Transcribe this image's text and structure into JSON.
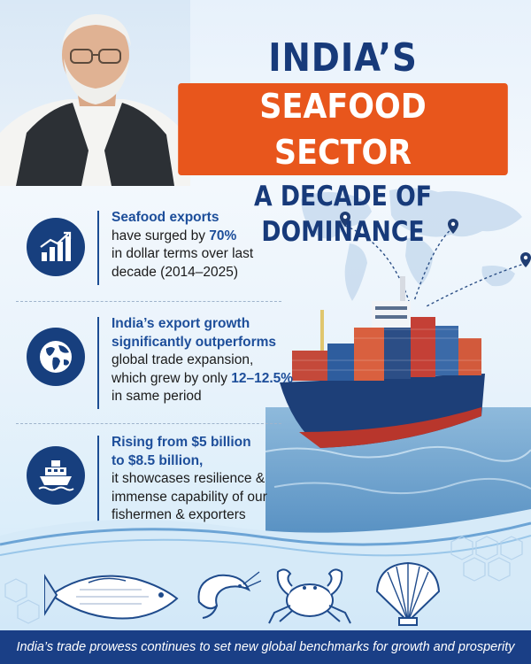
{
  "header": {
    "title_line1": "INDIA’S",
    "title_line2": "SEAFOOD SECTOR",
    "title_line3": "A DECADE OF DOMINANCE"
  },
  "colors": {
    "navy": "#173a7a",
    "orange": "#e8561c",
    "footer": "#1a3f86",
    "accent_text": "#1d4e9a"
  },
  "points": [
    {
      "icon": "growth-chart-icon",
      "highlight_1": "Seafood exports",
      "text_1": "have surged by ",
      "highlight_2": "70%",
      "text_2": "in dollar terms over last",
      "text_3": "decade (2014–2025)"
    },
    {
      "icon": "globe-icon",
      "highlight_1": "India’s export growth",
      "highlight_2": "significantly outperforms",
      "text_1": "global trade expansion,",
      "text_2": "which grew by only ",
      "highlight_3": "12–12.5%",
      "text_3": "in same period"
    },
    {
      "icon": "ship-icon",
      "highlight_1": "Rising from $5 billion",
      "highlight_2": "to $8.5 billion,",
      "text_1": "it showcases resilience &",
      "text_2": "immense capability of our",
      "text_3": "fishermen & exporters"
    }
  ],
  "footer": {
    "text": "India’s trade prowess continues to set new global benchmarks for growth and prosperity"
  }
}
